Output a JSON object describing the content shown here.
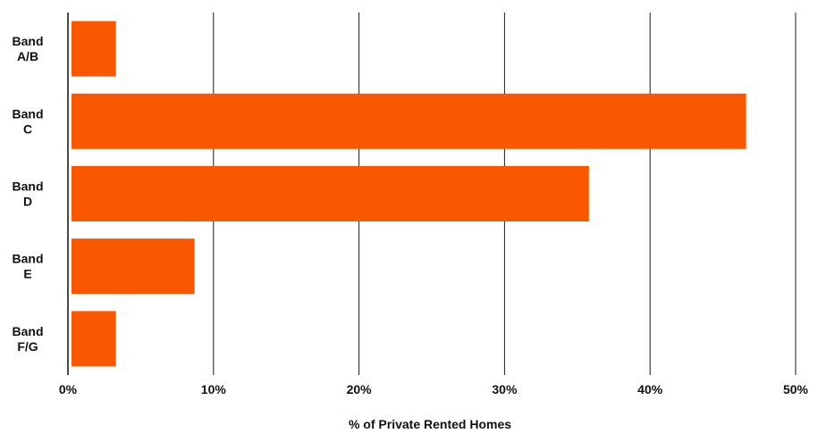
{
  "chart_data": {
    "type": "bar",
    "orientation": "horizontal",
    "title": "",
    "xlabel": "% of Private Rented Homes",
    "ylabel": "",
    "categories": [
      [
        "Band",
        "A/B"
      ],
      [
        "Band",
        "C"
      ],
      [
        "Band",
        "D"
      ],
      [
        "Band",
        "E"
      ],
      [
        "Band",
        "F/G"
      ]
    ],
    "values": [
      3.3,
      46.6,
      35.8,
      8.7,
      3.3
    ],
    "xlim": [
      0,
      50
    ],
    "x_ticks": [
      0,
      10,
      20,
      30,
      40,
      50
    ],
    "x_tick_labels": [
      "0%",
      "10%",
      "20%",
      "30%",
      "40%",
      "50%"
    ],
    "grid": "vertical",
    "legend": "none",
    "colors": {
      "bar": "#F95700",
      "grid": "#1a1a1a",
      "text": "#111111"
    }
  }
}
